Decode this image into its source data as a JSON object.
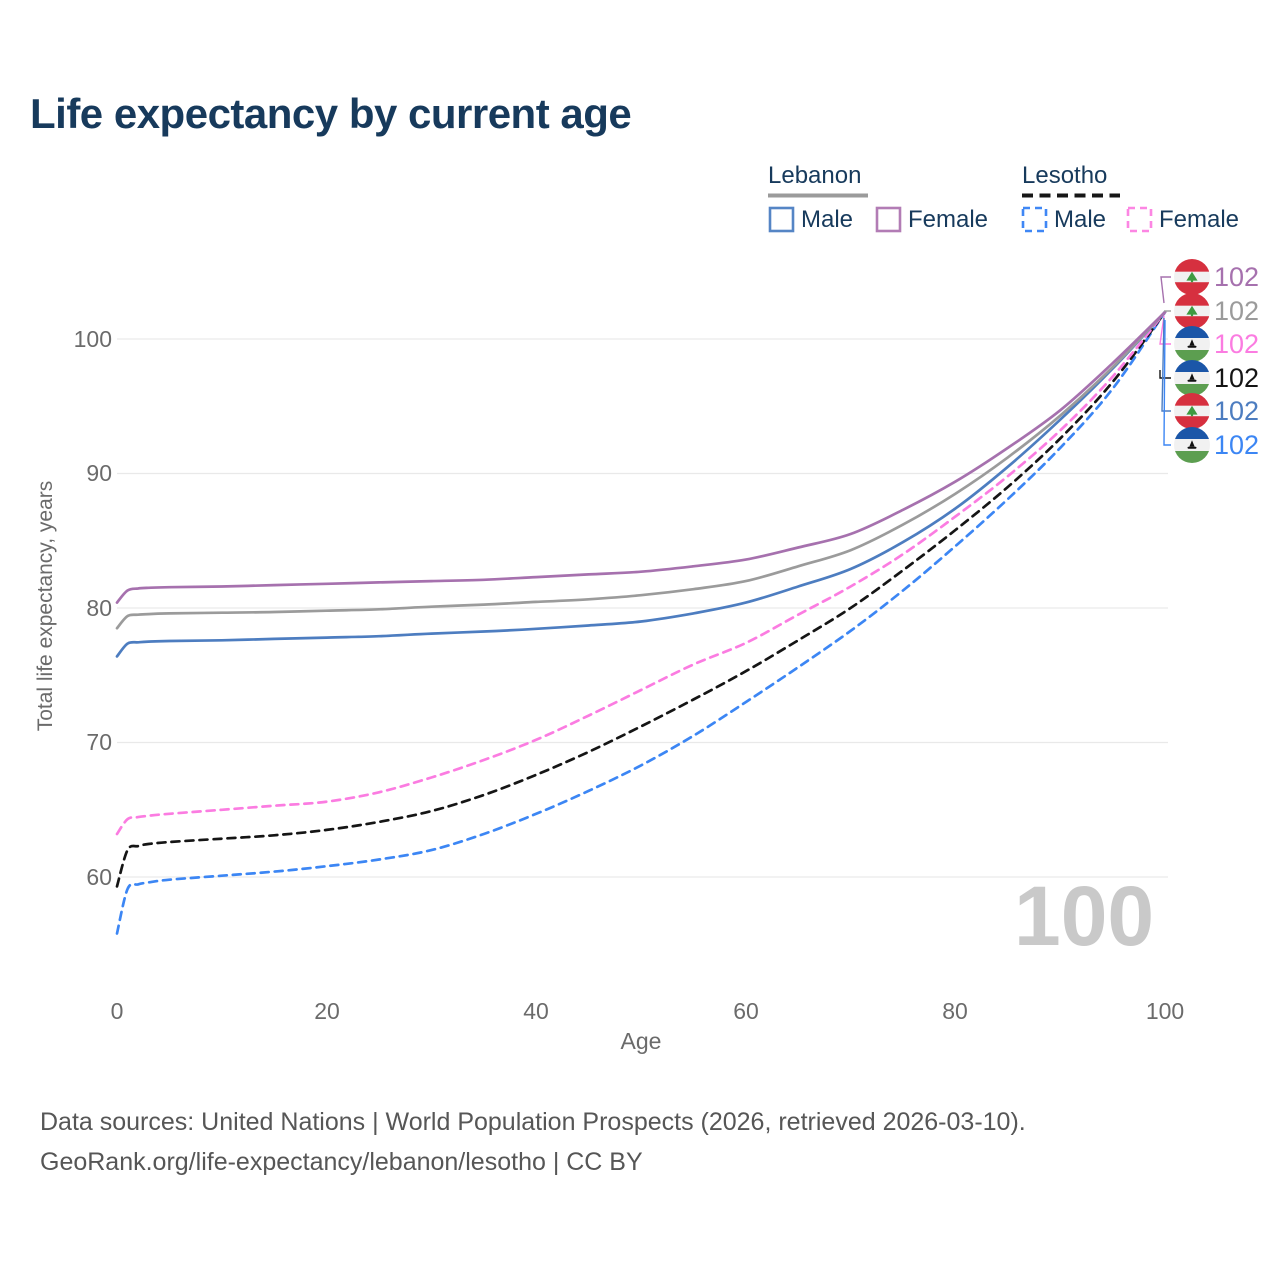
{
  "title": "Life expectancy by current age",
  "legend": {
    "lebanon": {
      "label": "Lebanon",
      "male_label": "Male",
      "female_label": "Female"
    },
    "lesotho": {
      "label": "Lesotho",
      "male_label": "Male",
      "female_label": "Female"
    }
  },
  "axes": {
    "y": {
      "title": "Total life expectancy, years",
      "tick_labels": [
        "100",
        "90",
        "80",
        "70",
        "60"
      ]
    },
    "x": {
      "title": "Age",
      "tick_labels": [
        "0",
        "20",
        "40",
        "60",
        "80",
        "100"
      ]
    }
  },
  "watermark": "100",
  "footer": {
    "line1": "Data sources: United Nations | World Population Prospects (2026, retrieved 2026-03-10).",
    "line2": "GeoRank.org/life-expectancy/lebanon/lesotho | CC BY"
  },
  "colors": {
    "title_text": "#173a5c",
    "legend_text": "#173a5c",
    "axis_text": "#6b6b6b",
    "gridline": "#e9e9e9",
    "watermark": "#c9c9c9",
    "footer_text": "#565656",
    "legend_lebanon_male": "#5585c5",
    "legend_lebanon_female": "#b27cb5",
    "legend_lesotho_male": "#3f87f5",
    "legend_lesotho_female": "#fc86e3",
    "lebanon_underline": "#9b9b9b",
    "lesotho_underline": "#161616",
    "lebanon_flag_red": "#d6303f",
    "lebanon_flag_cedar_green": "#3e9b41",
    "lesotho_flag_blue": "#1b56a8",
    "lesotho_flag_green": "#5c9e50"
  },
  "chart_data": {
    "type": "line",
    "title": "Life expectancy by current age",
    "xlabel": "Age",
    "ylabel": "Total life expectancy, years",
    "xlim": [
      0,
      100
    ],
    "ylim": [
      55,
      103
    ],
    "y_gridlines": [
      60,
      70,
      80,
      90,
      100
    ],
    "x_ticks": [
      0,
      20,
      40,
      60,
      80,
      100
    ],
    "grid": "horizontal-only",
    "legend_position": "top-right",
    "ages": [
      0,
      1,
      2,
      3,
      5,
      10,
      15,
      20,
      25,
      30,
      35,
      40,
      45,
      50,
      55,
      60,
      65,
      70,
      75,
      80,
      85,
      90,
      95,
      100
    ],
    "series": [
      {
        "id": "lesotho_male",
        "name": "Lesotho Male",
        "country": "Lesotho",
        "sex": "Male",
        "style": "dashed",
        "color": "#3c86f4",
        "values": [
          55.8,
          59.1,
          59.45,
          59.6,
          59.8,
          60.1,
          60.4,
          60.8,
          61.3,
          62.0,
          63.2,
          64.7,
          66.4,
          68.3,
          70.5,
          73.0,
          75.6,
          78.3,
          81.3,
          84.6,
          88.1,
          91.9,
          96.3,
          102
        ]
      },
      {
        "id": "lesotho_total",
        "name": "Lesotho Total",
        "country": "Lesotho",
        "sex": "Both",
        "style": "dashed",
        "color": "#151515",
        "values": [
          59.3,
          62.0,
          62.3,
          62.45,
          62.6,
          62.85,
          63.1,
          63.5,
          64.1,
          64.9,
          66.1,
          67.6,
          69.3,
          71.2,
          73.2,
          75.3,
          77.6,
          80.0,
          82.8,
          85.8,
          89.0,
          92.6,
          96.8,
          102
        ]
      },
      {
        "id": "lesotho_female",
        "name": "Lesotho Female",
        "country": "Lesotho",
        "sex": "Female",
        "style": "dashed",
        "color": "#fb7ce1",
        "values": [
          63.2,
          64.3,
          64.45,
          64.55,
          64.7,
          65.0,
          65.3,
          65.6,
          66.3,
          67.4,
          68.7,
          70.2,
          72.0,
          73.9,
          75.8,
          77.4,
          79.5,
          81.6,
          84.0,
          86.8,
          89.8,
          93.2,
          97.2,
          102
        ]
      },
      {
        "id": "lebanon_male",
        "name": "Lebanon Male",
        "country": "Lebanon",
        "sex": "Male",
        "style": "solid",
        "color": "#4d7dc0",
        "values": [
          76.4,
          77.35,
          77.45,
          77.5,
          77.55,
          77.6,
          77.7,
          77.8,
          77.9,
          78.1,
          78.25,
          78.45,
          78.7,
          79.0,
          79.6,
          80.4,
          81.6,
          82.9,
          84.9,
          87.4,
          90.5,
          94.0,
          97.8,
          102
        ]
      },
      {
        "id": "lebanon_total",
        "name": "Lebanon Total",
        "country": "Lebanon",
        "sex": "Both",
        "style": "solid",
        "color": "#9b9b9b",
        "values": [
          78.5,
          79.4,
          79.5,
          79.55,
          79.6,
          79.65,
          79.7,
          79.8,
          79.9,
          80.1,
          80.25,
          80.45,
          80.65,
          80.95,
          81.4,
          82.0,
          83.1,
          84.3,
          86.2,
          88.5,
          91.2,
          94.3,
          97.9,
          102
        ]
      },
      {
        "id": "lebanon_female",
        "name": "Lebanon Female",
        "country": "Lebanon",
        "sex": "Female",
        "style": "solid",
        "color": "#a671ae",
        "values": [
          80.4,
          81.3,
          81.45,
          81.5,
          81.55,
          81.6,
          81.7,
          81.8,
          81.9,
          82.0,
          82.1,
          82.3,
          82.5,
          82.7,
          83.1,
          83.6,
          84.5,
          85.5,
          87.3,
          89.4,
          91.9,
          94.7,
          98.2,
          102
        ]
      }
    ]
  },
  "end_labels": [
    {
      "series": "Lebanon Female",
      "flag": "lebanon",
      "value": "102",
      "color": "#a671ae"
    },
    {
      "series": "Lebanon Total",
      "flag": "lebanon",
      "value": "102",
      "color": "#9b9b9b"
    },
    {
      "series": "Lesotho Female",
      "flag": "lesotho",
      "value": "102",
      "color": "#fb7ce1"
    },
    {
      "series": "Lesotho Total",
      "flag": "lesotho",
      "value": "102",
      "color": "#151515"
    },
    {
      "series": "Lebanon Male",
      "flag": "lebanon",
      "value": "102",
      "color": "#4d7dc0"
    },
    {
      "series": "Lesotho Male",
      "flag": "lesotho",
      "value": "102",
      "color": "#3c86f4"
    }
  ]
}
